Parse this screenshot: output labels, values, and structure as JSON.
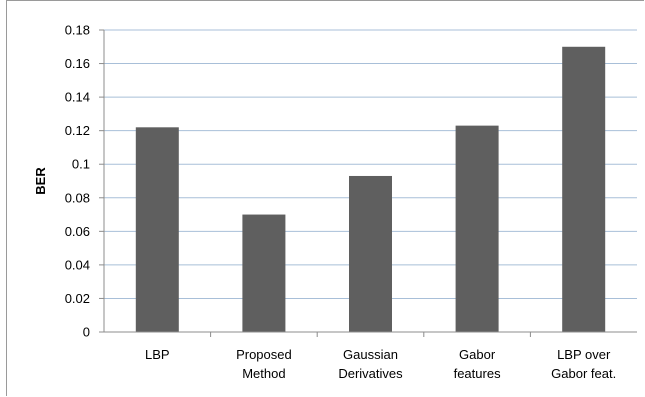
{
  "chart_data": {
    "type": "bar",
    "categories": [
      [
        "LBP"
      ],
      [
        "Proposed",
        "Method"
      ],
      [
        "Gaussian",
        "Derivatives"
      ],
      [
        "Gabor",
        "features"
      ],
      [
        "LBP over",
        "Gabor feat."
      ]
    ],
    "values": [
      0.122,
      0.07,
      0.093,
      0.123,
      0.17
    ],
    "ylabel": "BER",
    "ylim": [
      0,
      0.18
    ],
    "yticks": [
      "0",
      "0.02",
      "0.04",
      "0.06",
      "0.08",
      "0.1",
      "0.12",
      "0.14",
      "0.16",
      "0.18"
    ],
    "grid": true,
    "legend": "none",
    "colors": {
      "bar": "#5f5f5f",
      "grid": "#a8bfd8",
      "axis": "#8c8c8c"
    }
  }
}
